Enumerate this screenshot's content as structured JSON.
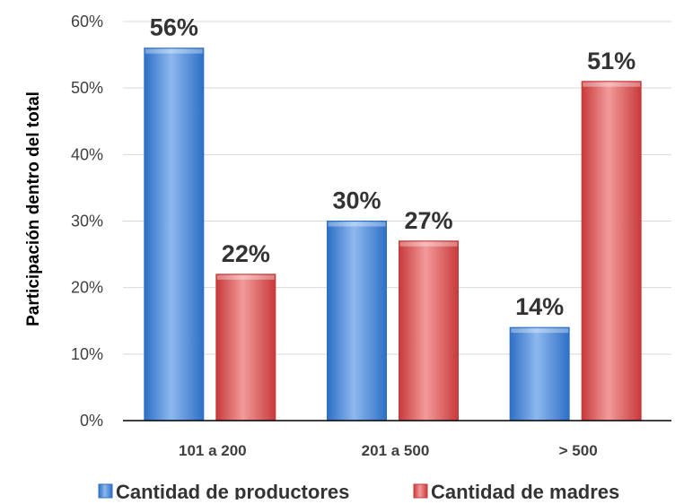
{
  "chart_data": {
    "type": "bar",
    "title": "",
    "xlabel": "",
    "ylabel": "Participación dentro del total",
    "categories": [
      "101 a 200",
      "201 a 500",
      "> 500"
    ],
    "series": [
      {
        "name": "Cantidad de productores",
        "values": [
          56,
          30,
          14
        ],
        "labels": [
          "56%",
          "30%",
          "14%"
        ],
        "color": "#2E6FC6",
        "color_light": "#8DB8EE"
      },
      {
        "name": "Cantidad de madres",
        "values": [
          22,
          27,
          51
        ],
        "labels": [
          "22%",
          "27%",
          "51%"
        ],
        "color": "#C83A3A",
        "color_light": "#F29A9A"
      }
    ],
    "ylim": [
      0,
      60
    ],
    "yticks": [
      0,
      10,
      20,
      30,
      40,
      50,
      60
    ],
    "ytick_labels": [
      "0%",
      "10%",
      "20%",
      "30%",
      "40%",
      "50%",
      "60%"
    ],
    "grid": true,
    "legend_position": "bottom"
  }
}
